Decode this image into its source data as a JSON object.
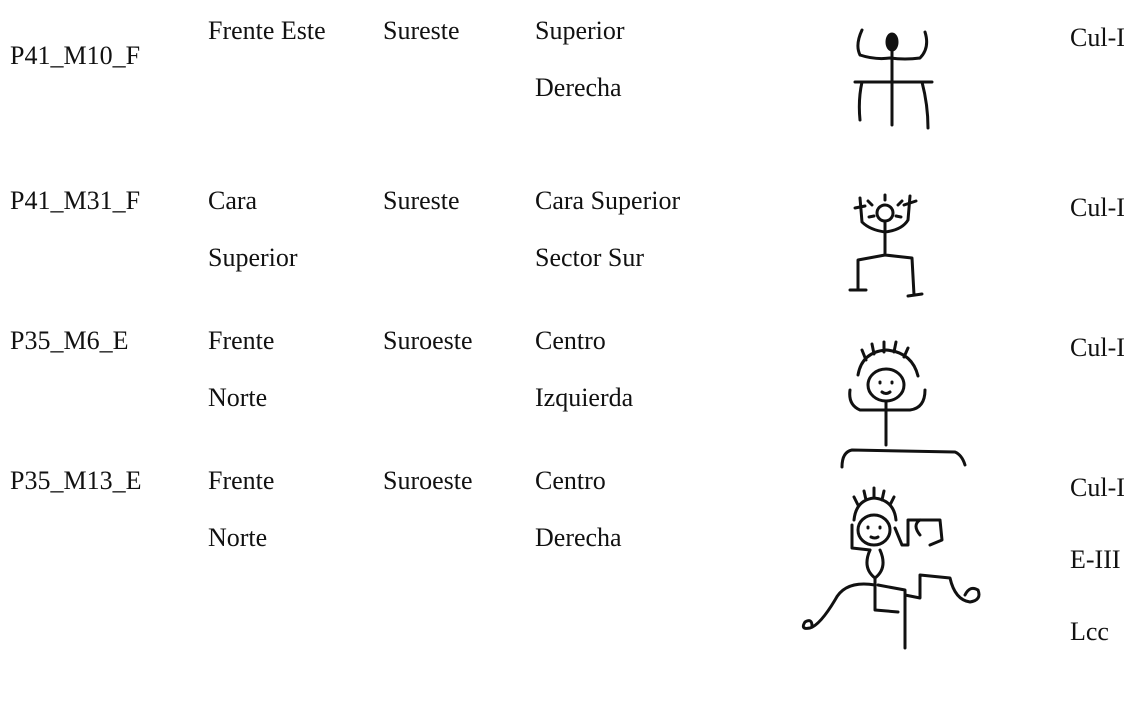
{
  "table": {
    "rows": [
      {
        "id": "P41_M10_F",
        "face": [
          "Frente Este"
        ],
        "orientation": [
          "Sureste"
        ],
        "position": [
          "Superior",
          "Derecha"
        ],
        "styles": [
          "Cul-I"
        ]
      },
      {
        "id": "P41_M31_F",
        "face": [
          "Cara",
          "Superior"
        ],
        "orientation": [
          "Sureste"
        ],
        "position": [
          "Cara Superior",
          "Sector Sur"
        ],
        "styles": [
          "Cul-I"
        ]
      },
      {
        "id": "P35_M6_E",
        "face": [
          "Frente",
          "Norte"
        ],
        "orientation": [
          "Suroeste"
        ],
        "position": [
          "Centro",
          "Izquierda"
        ],
        "styles": [
          "Cul-I"
        ]
      },
      {
        "id": "P35_M13_E",
        "face": [
          "Frente",
          "Norte"
        ],
        "orientation": [
          "Suroeste"
        ],
        "position": [
          "Centro",
          "Derecha"
        ],
        "styles": [
          "Cul-I",
          "E-III",
          "Lcc"
        ]
      }
    ]
  }
}
